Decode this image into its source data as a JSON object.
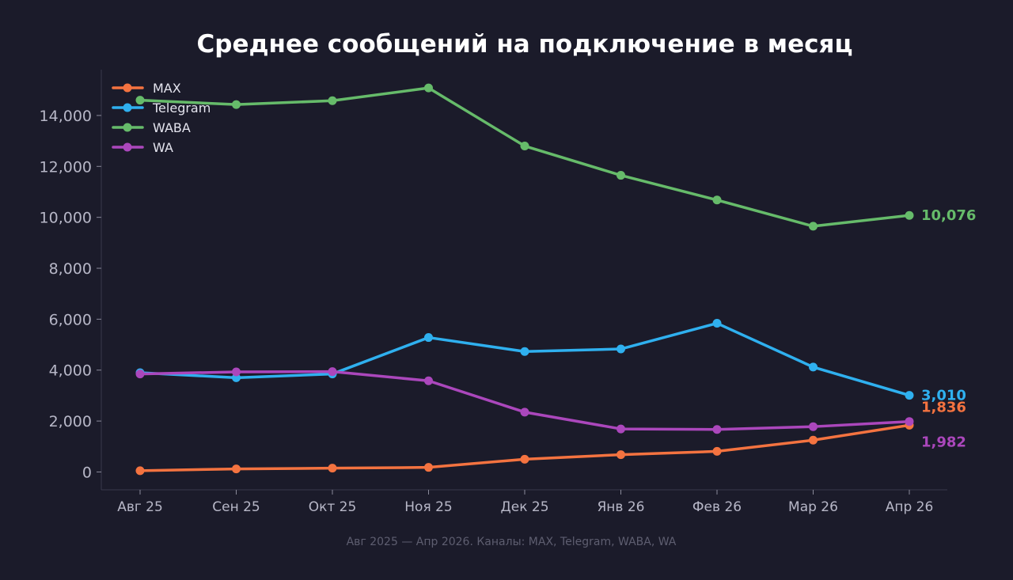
{
  "chart_data": {
    "type": "line",
    "title": "Среднее сообщений на подключение в месяц",
    "xlabel": "",
    "ylabel": "",
    "footnote": "Авг 2025 — Апр 2026. Каналы: MAX, Telegram, WABA, WA",
    "categories": [
      "Авг 25",
      "Сен 25",
      "Окт 25",
      "Ноя 25",
      "Дек 25",
      "Янв 26",
      "Фев 26",
      "Мар 26",
      "Апр 26"
    ],
    "ylim": [
      -700,
      15800
    ],
    "yticks": [
      0,
      2000,
      4000,
      6000,
      8000,
      10000,
      12000,
      14000
    ],
    "ytick_labels": [
      "0",
      "2,000",
      "4,000",
      "6,000",
      "8,000",
      "10,000",
      "12,000",
      "14,000"
    ],
    "grid": false,
    "legend_position": "top-left",
    "series": [
      {
        "name": "MAX",
        "color": "#f47340",
        "values": [
          50,
          120,
          150,
          180,
          500,
          680,
          810,
          1250,
          1836
        ],
        "end_label": "1,836"
      },
      {
        "name": "Telegram",
        "color": "#2fb0ef",
        "values": [
          3900,
          3700,
          3850,
          5280,
          4730,
          4830,
          5840,
          4120,
          3010
        ],
        "end_label": "3,010"
      },
      {
        "name": "WABA",
        "color": "#66bb6a",
        "values": [
          14600,
          14430,
          14580,
          15080,
          12800,
          11650,
          10680,
          9650,
          10076
        ],
        "end_label": "10,076"
      },
      {
        "name": "WA",
        "color": "#ab47bc",
        "values": [
          3850,
          3930,
          3940,
          3580,
          2350,
          1690,
          1670,
          1780,
          1982
        ],
        "end_label": "1,982"
      }
    ]
  }
}
